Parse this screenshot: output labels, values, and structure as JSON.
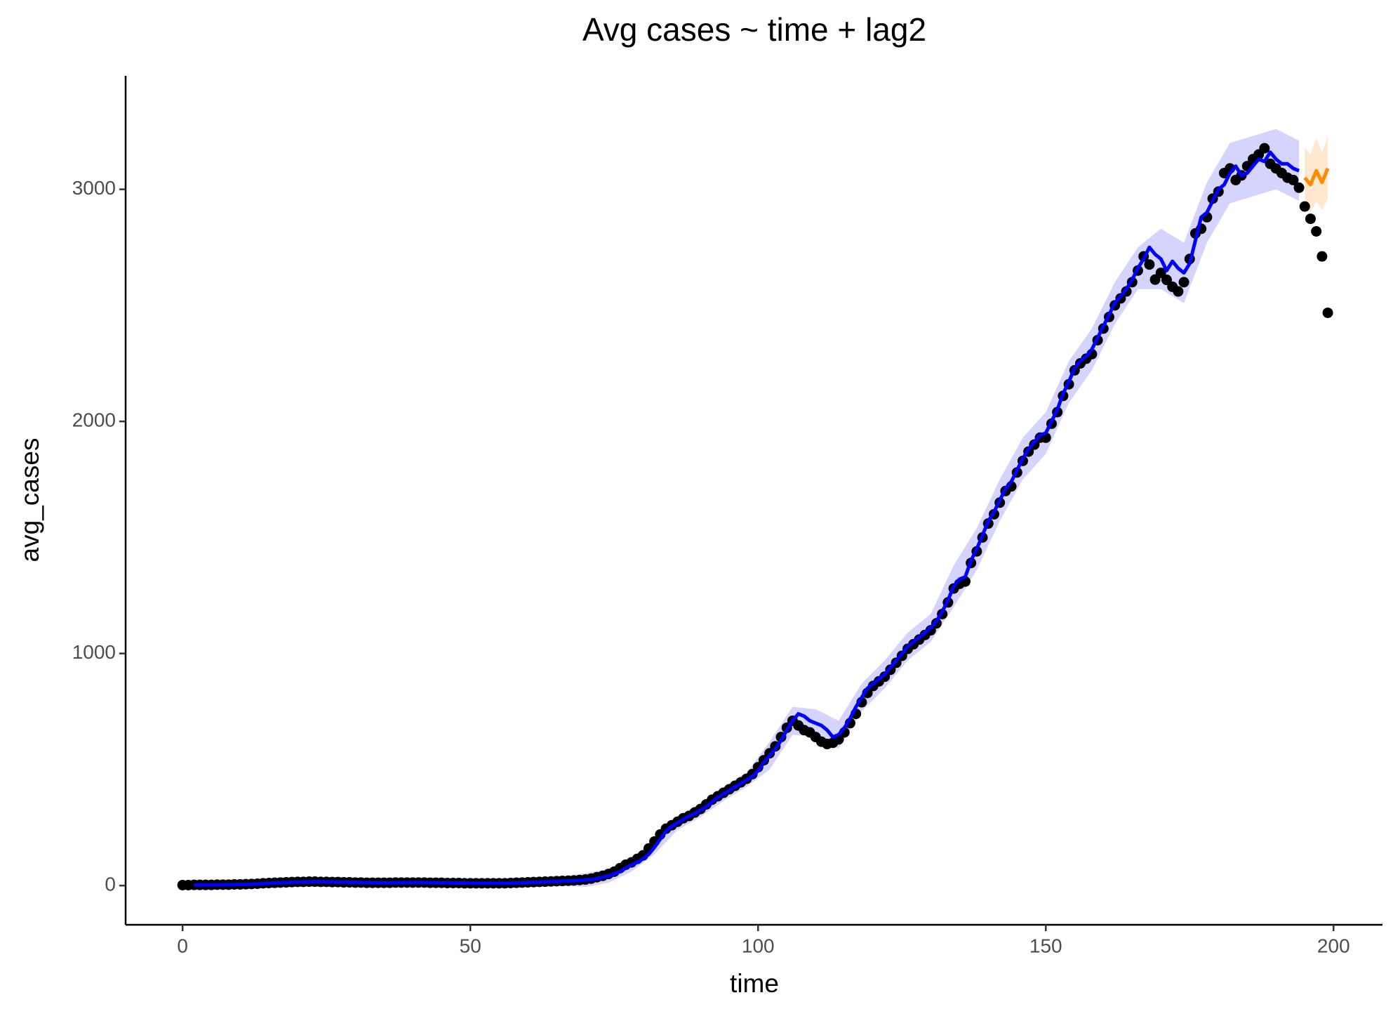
{
  "chart_data": {
    "type": "scatter",
    "title": "Avg cases  ~  time + lag2",
    "x_label": "time",
    "y_label": "avg_cases",
    "xlim": [
      -9.9,
      208.5
    ],
    "ylim": [
      -169,
      3489
    ],
    "xticks": [
      0,
      50,
      100,
      150,
      200
    ],
    "yticks": [
      0,
      1000,
      2000,
      3000
    ],
    "grid": false,
    "x": [
      0,
      1,
      2,
      3,
      4,
      5,
      6,
      7,
      8,
      9,
      10,
      11,
      12,
      13,
      14,
      15,
      16,
      17,
      18,
      19,
      20,
      21,
      22,
      23,
      24,
      25,
      26,
      27,
      28,
      29,
      30,
      31,
      32,
      33,
      34,
      35,
      36,
      37,
      38,
      39,
      40,
      41,
      42,
      43,
      44,
      45,
      46,
      47,
      48,
      49,
      50,
      51,
      52,
      53,
      54,
      55,
      56,
      57,
      58,
      59,
      60,
      61,
      62,
      63,
      64,
      65,
      66,
      67,
      68,
      69,
      70,
      71,
      72,
      73,
      74,
      75,
      76,
      77,
      78,
      79,
      80,
      81,
      82,
      83,
      84,
      85,
      86,
      87,
      88,
      89,
      90,
      91,
      92,
      93,
      94,
      95,
      96,
      97,
      98,
      99,
      100,
      101,
      102,
      103,
      104,
      105,
      106,
      107,
      108,
      109,
      110,
      111,
      112,
      113,
      114,
      115,
      116,
      117,
      118,
      119,
      120,
      121,
      122,
      123,
      124,
      125,
      126,
      127,
      128,
      129,
      130,
      131,
      132,
      133,
      134,
      135,
      136,
      137,
      138,
      139,
      140,
      141,
      142,
      143,
      144,
      145,
      146,
      147,
      148,
      149,
      150,
      151,
      152,
      153,
      154,
      155,
      156,
      157,
      158,
      159,
      160,
      161,
      162,
      163,
      164,
      165,
      166,
      167,
      168,
      169,
      170,
      171,
      172,
      173,
      174,
      175,
      176,
      177,
      178,
      179,
      180,
      181,
      182,
      183,
      184,
      185,
      186,
      187,
      188,
      189,
      190,
      191,
      192,
      193,
      194,
      195,
      196,
      197,
      198,
      199
    ],
    "bands": [
      {
        "color": "#ccccff",
        "x": [
          2,
          6,
          10,
          14,
          18,
          22,
          26,
          30,
          34,
          38,
          42,
          46,
          50,
          54,
          58,
          62,
          66,
          70,
          74,
          78,
          82,
          86,
          90,
          94,
          98,
          102,
          106,
          110,
          114,
          118,
          122,
          126,
          130,
          134,
          138,
          142,
          146,
          150,
          154,
          158,
          162,
          166,
          170,
          174,
          178,
          182,
          186,
          190,
          194
        ],
        "lower": [
          -18,
          -17,
          -15,
          -12,
          -7,
          -4,
          -4,
          -6,
          -8,
          -7,
          -7,
          -8,
          -10,
          -10,
          -9,
          -5,
          -1,
          -6,
          12,
          60,
          135,
          240,
          295,
          365,
          425,
          500,
          650,
          640,
          590,
          750,
          850,
          970,
          1050,
          1200,
          1360,
          1570,
          1750,
          1860,
          2080,
          2220,
          2420,
          2570,
          2570,
          2510,
          2770,
          2940,
          2970,
          3000,
          2950
        ],
        "upper": [
          22,
          23,
          25,
          28,
          33,
          36,
          36,
          34,
          32,
          33,
          33,
          32,
          30,
          30,
          31,
          35,
          39,
          54,
          72,
          120,
          195,
          300,
          355,
          425,
          485,
          620,
          770,
          760,
          710,
          870,
          970,
          1090,
          1170,
          1380,
          1540,
          1750,
          1930,
          2040,
          2260,
          2400,
          2600,
          2750,
          2830,
          2770,
          3030,
          3200,
          3230,
          3260,
          3210
        ]
      },
      {
        "color": "#ffe4c4",
        "x": [
          195,
          196,
          197,
          198,
          199
        ],
        "lower": [
          2920,
          2900,
          2950,
          2910,
          2960
        ],
        "upper": [
          3180,
          3150,
          3220,
          3160,
          3230
        ]
      }
    ],
    "series": [
      {
        "style": "points",
        "color": "#000000",
        "values": [
          2,
          2,
          3,
          3,
          3,
          3,
          4,
          4,
          4,
          5,
          5,
          6,
          7,
          8,
          10,
          11,
          12,
          13,
          14,
          15,
          16,
          16,
          17,
          17,
          16,
          16,
          15,
          15,
          14,
          14,
          13,
          13,
          12,
          12,
          12,
          12,
          12,
          13,
          13,
          13,
          13,
          13,
          13,
          12,
          12,
          12,
          11,
          11,
          11,
          10,
          10,
          10,
          10,
          10,
          10,
          10,
          10,
          11,
          12,
          13,
          14,
          15,
          16,
          17,
          18,
          19,
          20,
          21,
          22,
          24,
          26,
          30,
          36,
          42,
          50,
          60,
          75,
          90,
          100,
          115,
          130,
          160,
          190,
          220,
          245,
          260,
          275,
          290,
          300,
          315,
          330,
          350,
          370,
          385,
          400,
          415,
          430,
          445,
          460,
          480,
          510,
          540,
          570,
          600,
          640,
          680,
          710,
          690,
          670,
          660,
          640,
          620,
          610,
          615,
          630,
          660,
          700,
          740,
          790,
          830,
          860,
          880,
          900,
          930,
          960,
          990,
          1020,
          1040,
          1060,
          1080,
          1100,
          1130,
          1170,
          1220,
          1280,
          1300,
          1310,
          1390,
          1440,
          1500,
          1560,
          1600,
          1650,
          1700,
          1720,
          1780,
          1830,
          1870,
          1900,
          1930,
          1930,
          1990,
          2040,
          2110,
          2160,
          2220,
          2250,
          2270,
          2290,
          2350,
          2400,
          2450,
          2500,
          2530,
          2560,
          2600,
          2650,
          2711,
          2676,
          2611,
          2640,
          2610,
          2580,
          2560,
          2600,
          2700,
          2810,
          2830,
          2880,
          2960,
          2990,
          3070,
          3090,
          3040,
          3060,
          3100,
          3130,
          3150,
          3177,
          3110,
          3090,
          3070,
          3050,
          3040,
          3007,
          2926,
          2873,
          2819,
          2711,
          2468
        ]
      },
      {
        "style": "line",
        "color": "#0000ff",
        "values": [
          null,
          null,
          2,
          3,
          3,
          3,
          3,
          4,
          4,
          4,
          5,
          5,
          6,
          7,
          8,
          10,
          11,
          12,
          13,
          14,
          15,
          16,
          16,
          17,
          17,
          16,
          16,
          15,
          15,
          14,
          14,
          13,
          13,
          12,
          12,
          12,
          12,
          12,
          13,
          13,
          13,
          13,
          13,
          13,
          12,
          12,
          12,
          11,
          11,
          11,
          10,
          10,
          10,
          10,
          10,
          10,
          10,
          10,
          11,
          12,
          13,
          14,
          15,
          16,
          17,
          18,
          19,
          20,
          21,
          22,
          24,
          26,
          30,
          36,
          42,
          50,
          60,
          75,
          90,
          100,
          115,
          135,
          165,
          200,
          235,
          255,
          270,
          285,
          300,
          310,
          325,
          340,
          360,
          380,
          395,
          410,
          425,
          440,
          455,
          470,
          495,
          530,
          560,
          590,
          625,
          670,
          710,
          740,
          730,
          710,
          700,
          690,
          670,
          640,
          650,
          680,
          720,
          770,
          810,
          850,
          870,
          890,
          910,
          940,
          970,
          1000,
          1030,
          1050,
          1070,
          1090,
          1110,
          1140,
          1180,
          1230,
          1290,
          1320,
          1330,
          1400,
          1450,
          1510,
          1570,
          1610,
          1660,
          1710,
          1740,
          1790,
          1840,
          1880,
          1910,
          1940,
          1950,
          2000,
          2050,
          2120,
          2170,
          2230,
          2260,
          2280,
          2310,
          2360,
          2410,
          2460,
          2510,
          2540,
          2570,
          2610,
          2660,
          2700,
          2750,
          2720,
          2700,
          2650,
          2690,
          2660,
          2640,
          2680,
          2780,
          2880,
          2900,
          2950,
          3000,
          3020,
          3070,
          3100,
          3060,
          3070,
          3100,
          3130,
          3120,
          3160,
          3130,
          3110,
          3110,
          3090,
          3080,
          null,
          null,
          null,
          null,
          null
        ]
      },
      {
        "style": "line",
        "color": "#ff8c00",
        "x": [
          195,
          196,
          197,
          198,
          199
        ],
        "values": [
          3050,
          3020,
          3080,
          3030,
          3090
        ]
      }
    ]
  }
}
